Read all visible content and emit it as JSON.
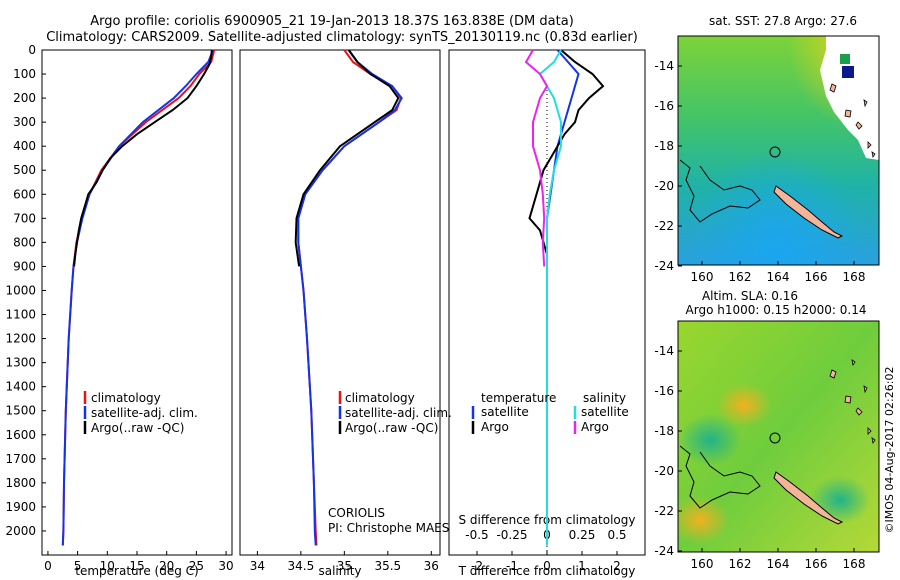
{
  "header": {
    "title_line1": "Argo profile: coriolis 6900905_21 19-Jan-2013 18.37S 163.838E (DM data)",
    "title_line2": "Climatology: CARS2009. Satellite-adjusted climatology: synTS_20130119.nc (0.83d earlier)"
  },
  "credit": {
    "institution": "CORIOLIS",
    "pi": "PI: Christophe MAES",
    "imos": "©IMOS 04-Aug-2017 02:26:02"
  },
  "colors": {
    "climatology": "#ee1111",
    "satellite": "#1133ee",
    "argo": "#000000",
    "s_satellite": "#22dddd",
    "s_argo": "#ee22ee"
  },
  "legend_profiles": [
    "climatology",
    "satellite-adj. clim.",
    "Argo(..raw -QC)"
  ],
  "legend_diff": {
    "temperature_title": "temperature",
    "salinity_title": "salinity",
    "satellite": "satellite",
    "argo": "Argo"
  },
  "maps": {
    "sst_title": "sat. SST: 27.8 Argo: 27.6",
    "sla_title_line1": "Altim. SLA: 0.16",
    "sla_title_line2": "Argo h1000: 0.15 h2000: 0.14",
    "xticks": [
      "160",
      "162",
      "164",
      "166",
      "168"
    ],
    "yticks": [
      "-14",
      "-16",
      "-18",
      "-20",
      "-22",
      "-24"
    ]
  },
  "chart_data": [
    {
      "type": "line",
      "panel": "temperature",
      "xlabel": "temperature (deg C)",
      "ylabel": "",
      "xlim": [
        -1,
        31
      ],
      "ylim": [
        2100,
        0
      ],
      "xticks": [
        "0",
        "5",
        "10",
        "15",
        "20",
        "25",
        "30"
      ],
      "yticks": [
        "0",
        "100",
        "200",
        "300",
        "400",
        "500",
        "600",
        "700",
        "800",
        "900",
        "1000",
        "1100",
        "1200",
        "1300",
        "1400",
        "1500",
        "1600",
        "1700",
        "1800",
        "1900",
        "2000"
      ],
      "series": [
        {
          "name": "climatology",
          "depth": [
            0,
            50,
            100,
            150,
            200,
            300,
            400,
            500,
            600,
            700,
            800,
            900,
            1000,
            1200,
            1500,
            1800,
            2000,
            2060
          ],
          "values": [
            28.0,
            27.5,
            25.5,
            24.0,
            22.0,
            16.5,
            12.0,
            9.0,
            7.0,
            5.7,
            4.8,
            4.3,
            4.0,
            3.5,
            3.0,
            2.7,
            2.6,
            2.5
          ]
        },
        {
          "name": "satellite-adj. clim.",
          "depth": [
            0,
            50,
            100,
            150,
            200,
            300,
            400,
            500,
            600,
            700,
            800,
            900,
            1000,
            1200,
            1500,
            1800,
            2000,
            2060
          ],
          "values": [
            27.8,
            27.0,
            25.0,
            23.2,
            21.2,
            16.0,
            12.0,
            9.2,
            7.0,
            5.8,
            4.9,
            4.3,
            4.0,
            3.5,
            3.0,
            2.7,
            2.6,
            2.5
          ]
        },
        {
          "name": "Argo(..raw -QC)",
          "depth": [
            0,
            30,
            60,
            100,
            150,
            200,
            250,
            300,
            350,
            400,
            450,
            500,
            550,
            600,
            650,
            700,
            750,
            800,
            850,
            900
          ],
          "values": [
            27.6,
            27.5,
            27.2,
            26.3,
            25.0,
            23.5,
            21.0,
            18.0,
            15.0,
            12.5,
            10.5,
            9.2,
            8.2,
            6.8,
            6.2,
            5.6,
            5.2,
            4.9,
            4.6,
            4.4
          ]
        }
      ]
    },
    {
      "type": "line",
      "panel": "salinity",
      "xlabel": "salinity",
      "ylabel": "",
      "xlim": [
        33.8,
        36.1
      ],
      "ylim": [
        2100,
        0
      ],
      "xticks": [
        "34",
        "34.5",
        "35",
        "35.5",
        "36"
      ],
      "series": [
        {
          "name": "climatology",
          "depth": [
            0,
            50,
            100,
            150,
            200,
            250,
            300,
            400,
            500,
            600,
            700,
            800,
            900,
            1000,
            1200,
            1500,
            1800,
            2000,
            2060
          ],
          "values": [
            35.0,
            35.1,
            35.3,
            35.55,
            35.65,
            35.6,
            35.4,
            35.0,
            34.75,
            34.55,
            34.47,
            34.47,
            34.5,
            34.53,
            34.57,
            34.62,
            34.65,
            34.67,
            34.68
          ]
        },
        {
          "name": "satellite-adj. clim.",
          "depth": [
            0,
            50,
            100,
            150,
            200,
            250,
            300,
            400,
            500,
            600,
            700,
            800,
            900,
            1000,
            1200,
            1500,
            1800,
            2000,
            2060
          ],
          "values": [
            35.05,
            35.15,
            35.32,
            35.55,
            35.66,
            35.58,
            35.4,
            35.0,
            34.75,
            34.55,
            34.47,
            34.47,
            34.5,
            34.53,
            34.57,
            34.62,
            34.65,
            34.66,
            34.67
          ]
        },
        {
          "name": "Argo(..raw -QC)",
          "depth": [
            0,
            50,
            100,
            150,
            200,
            250,
            300,
            400,
            500,
            600,
            700,
            800,
            900
          ],
          "values": [
            35.05,
            35.15,
            35.3,
            35.52,
            35.62,
            35.55,
            35.35,
            34.95,
            34.72,
            34.53,
            34.45,
            34.44,
            34.48
          ]
        }
      ]
    },
    {
      "type": "line",
      "panel": "difference",
      "xlabel": "T difference from climatology",
      "xlabel_top": "S difference from climatology",
      "xlim": [
        -2.8,
        2.8
      ],
      "ylim": [
        2100,
        0
      ],
      "xticks_T": [
        "-2",
        "-1",
        "0",
        "1",
        "2"
      ],
      "xticks_S": [
        "-0.5",
        "-0.25",
        "0",
        "0.25",
        "0.5"
      ],
      "series": [
        {
          "name": "temperature satellite",
          "depth": [
            0,
            50,
            100,
            150,
            200,
            250,
            300,
            400,
            500,
            600,
            700,
            800,
            900,
            1000,
            1500,
            2060
          ],
          "values": [
            0.3,
            0.6,
            0.9,
            0.8,
            0.7,
            0.6,
            0.5,
            0.3,
            0.2,
            0.1,
            0.0,
            0.0,
            0.0,
            0.0,
            0.0,
            0.0
          ]
        },
        {
          "name": "temperature Argo",
          "depth": [
            0,
            50,
            100,
            150,
            200,
            250,
            300,
            350,
            400,
            450,
            500,
            550,
            600,
            650,
            700,
            750,
            800,
            850,
            900
          ],
          "values": [
            0.4,
            0.8,
            1.3,
            1.6,
            1.2,
            0.9,
            0.8,
            0.5,
            0.3,
            0.1,
            -0.1,
            -0.2,
            -0.3,
            -0.4,
            -0.5,
            -0.2,
            -0.1,
            0.0,
            0.0
          ]
        },
        {
          "name": "salinity satellite",
          "depth": [
            0,
            50,
            100,
            150,
            200,
            300,
            400,
            500,
            600,
            700,
            800,
            900,
            1000,
            1500,
            2060
          ],
          "values": [
            0.1,
            0.05,
            -0.05,
            0.0,
            0.05,
            0.1,
            0.1,
            0.05,
            0.02,
            0.0,
            0.0,
            0.0,
            0.0,
            0.0,
            0.0
          ]
        },
        {
          "name": "salinity Argo",
          "depth": [
            0,
            50,
            100,
            150,
            200,
            300,
            400,
            500,
            600,
            700,
            800,
            900
          ],
          "values": [
            -0.1,
            -0.15,
            -0.05,
            0.0,
            -0.05,
            -0.1,
            -0.1,
            -0.05,
            -0.03,
            -0.02,
            -0.03,
            -0.02
          ]
        }
      ]
    }
  ]
}
